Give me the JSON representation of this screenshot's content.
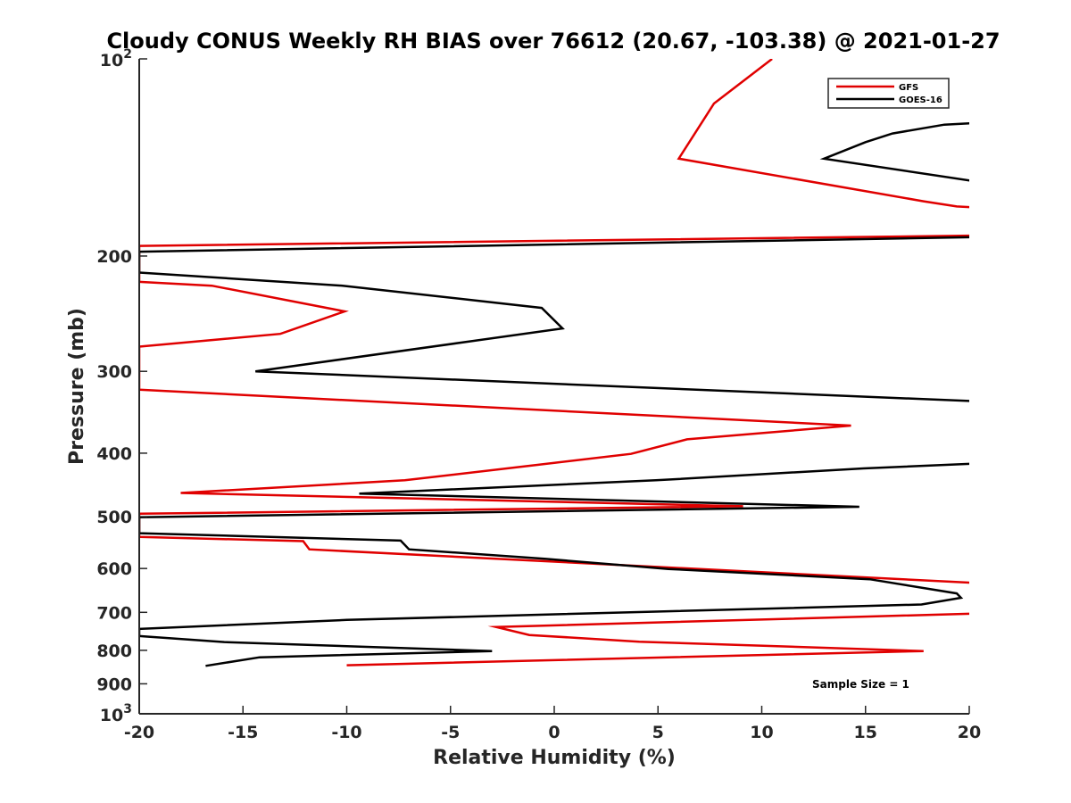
{
  "chart_data": {
    "type": "line",
    "title": "Cloudy CONUS Weekly RH BIAS over 76612 (20.67, -103.38) @ 2021-01-27",
    "xlabel": "Relative Humidity (%)",
    "ylabel": "Pressure (mb)",
    "xlim": [
      -20,
      20
    ],
    "ylim": [
      100,
      1000
    ],
    "y_scale": "log",
    "y_reversed": true,
    "grid": false,
    "legend_position": "top-right",
    "x_ticks": [
      "-20",
      "-15",
      "-10",
      "-5",
      "0",
      "5",
      "10",
      "15",
      "20"
    ],
    "x_tick_values": [
      -20,
      -15,
      -10,
      -5,
      0,
      5,
      10,
      15,
      20
    ],
    "y_ticks": [
      {
        "value": 100,
        "base": "10",
        "exp": "2"
      },
      {
        "value": 200,
        "label": "200"
      },
      {
        "value": 300,
        "label": "300"
      },
      {
        "value": 400,
        "label": "400"
      },
      {
        "value": 500,
        "label": "500"
      },
      {
        "value": 600,
        "label": "600"
      },
      {
        "value": 700,
        "label": "700"
      },
      {
        "value": 800,
        "label": "800"
      },
      {
        "value": 900,
        "label": "900"
      },
      {
        "value": 1000,
        "base": "10",
        "exp": "3"
      }
    ],
    "series": [
      {
        "name": "GFS",
        "color": "#e00000",
        "points": [
          [
            10.5,
            100
          ],
          [
            7.7,
            117
          ],
          [
            6.0,
            142
          ],
          [
            17.8,
            165
          ],
          [
            19.4,
            168
          ],
          [
            21,
            169
          ],
          [
            21,
            186
          ],
          [
            -20,
            193
          ],
          [
            -20,
            219
          ],
          [
            -16.5,
            222
          ],
          [
            -10.1,
            243
          ],
          [
            -13.2,
            263
          ],
          [
            -20,
            275
          ],
          [
            -20,
            320
          ],
          [
            14.3,
            363
          ],
          [
            6.4,
            381
          ],
          [
            3.7,
            401
          ],
          [
            -0.9,
            417
          ],
          [
            -7.2,
            440
          ],
          [
            -18.0,
            460
          ],
          [
            9.1,
            482
          ],
          [
            -20,
            495
          ],
          [
            -20,
            537
          ],
          [
            -12.1,
            545
          ],
          [
            -11.8,
            561
          ],
          [
            21,
            633
          ],
          [
            21,
            702
          ],
          [
            -2.8,
            737
          ],
          [
            -1.2,
            758
          ],
          [
            4.1,
            776
          ],
          [
            17.8,
            802
          ],
          [
            -10.0,
            843
          ]
        ]
      },
      {
        "name": "GOES-16",
        "color": "#000000",
        "points": [
          [
            21,
            125
          ],
          [
            18.8,
            126
          ],
          [
            16.3,
            130
          ],
          [
            15.0,
            134
          ],
          [
            13.0,
            142
          ],
          [
            21,
            155
          ],
          [
            21,
            187
          ],
          [
            -20,
            197
          ],
          [
            -20,
            212
          ],
          [
            -10.2,
            222
          ],
          [
            -0.6,
            240
          ],
          [
            0.4,
            258
          ],
          [
            -14.4,
            300
          ],
          [
            21,
            334
          ],
          [
            21,
            414
          ],
          [
            14.9,
            422
          ],
          [
            4.9,
            440
          ],
          [
            -9.4,
            461
          ],
          [
            14.7,
            483
          ],
          [
            -20,
            501
          ],
          [
            -20,
            530
          ],
          [
            -7.4,
            544
          ],
          [
            -7.0,
            561
          ],
          [
            -0.4,
            580
          ],
          [
            5.5,
            601
          ],
          [
            15.2,
            623
          ],
          [
            19.4,
            655
          ],
          [
            19.6,
            665
          ],
          [
            17.7,
            681
          ],
          [
            -10.0,
            719
          ],
          [
            -20,
            742
          ],
          [
            -20,
            761
          ],
          [
            -15.9,
            777
          ],
          [
            -3.0,
            802
          ],
          [
            -14.2,
            820
          ],
          [
            -16.8,
            845
          ]
        ]
      }
    ],
    "legend": [
      {
        "label": "GFS",
        "color": "#e00000"
      },
      {
        "label": "GOES-16",
        "color": "#000000"
      }
    ],
    "annotation": "Sample Size = 1"
  }
}
